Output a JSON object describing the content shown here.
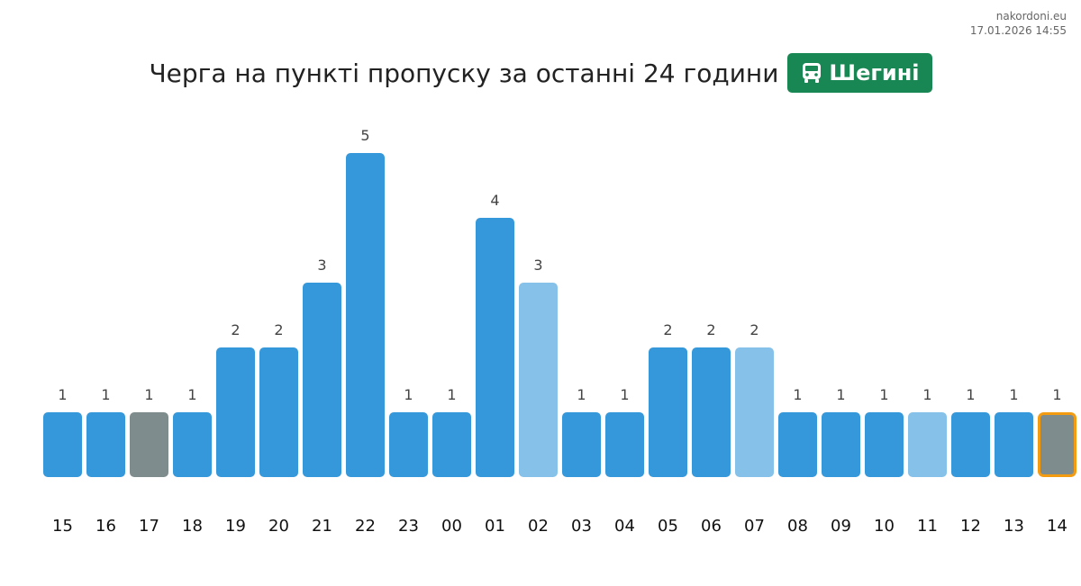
{
  "source": {
    "site": "nakordoni.eu",
    "timestamp": "17.01.2026 14:55"
  },
  "header": {
    "title": "Черга на пункті пропуску за останні 24 години",
    "checkpoint_badge": "Шегині",
    "badge_icon": "bus-icon",
    "badge_color": "#198754"
  },
  "colors": {
    "normal": "#3498db",
    "light": "#85c1e9",
    "gray": "#7f8c8d",
    "highlight_border": "#f39c12"
  },
  "chart_data": {
    "type": "bar",
    "categories": [
      "15",
      "16",
      "17",
      "18",
      "19",
      "20",
      "21",
      "22",
      "23",
      "00",
      "01",
      "02",
      "03",
      "04",
      "05",
      "06",
      "07",
      "08",
      "09",
      "10",
      "11",
      "12",
      "13",
      "14"
    ],
    "values": [
      1,
      1,
      1,
      1,
      2,
      2,
      3,
      5,
      1,
      1,
      4,
      3,
      1,
      1,
      2,
      2,
      2,
      1,
      1,
      1,
      1,
      1,
      1,
      1
    ],
    "bar_styles": [
      "normal",
      "normal",
      "gray",
      "normal",
      "normal",
      "normal",
      "normal",
      "normal",
      "normal",
      "normal",
      "normal",
      "light",
      "normal",
      "normal",
      "normal",
      "normal",
      "light",
      "normal",
      "normal",
      "normal",
      "light",
      "normal",
      "normal",
      "gray"
    ],
    "highlighted_category": "14",
    "title": "Черга на пункті пропуску за останні 24 години",
    "xlabel": "",
    "ylabel": "",
    "ylim": [
      0,
      5
    ],
    "grid": false,
    "legend": "none"
  }
}
